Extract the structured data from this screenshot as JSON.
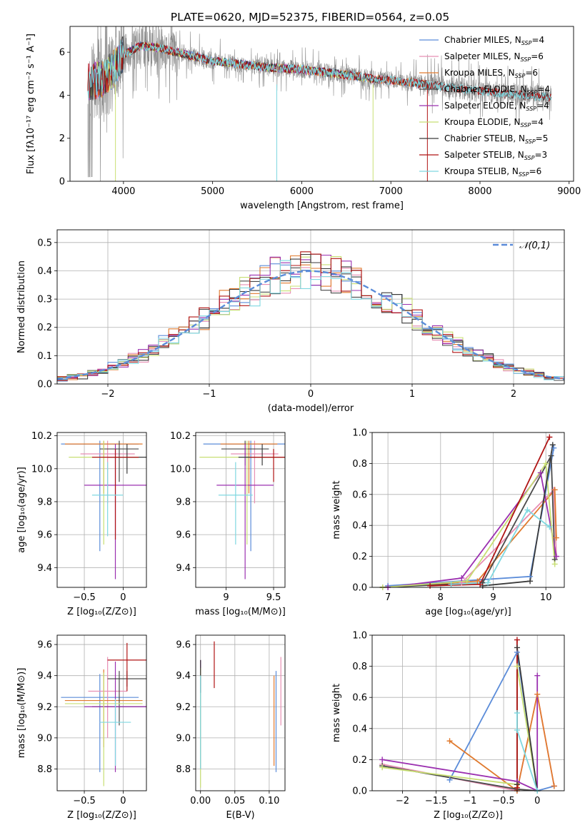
{
  "title": "PLATE=0620, MJD=52375, FIBERID=0564, z=0.05",
  "colors": {
    "Chabrier MILES": "#5b8cd9",
    "Salpeter MILES": "#e88fb4",
    "Kroupa MILES": "#e07a2e",
    "Chabrier ELODIE": "#4a4a4a",
    "Salpeter ELODIE": "#9b30b0",
    "Kroupa ELODIE": "#c8df73",
    "Chabrier STELIB": "#3a3a3a",
    "Salpeter STELIB": "#b01414",
    "Kroupa STELIB": "#7fd8e0",
    "data": "#8a8a8a",
    "normal": "#5b8cd9"
  },
  "chart_data": [
    {
      "type": "line",
      "id": "spectrum",
      "xlabel": "wavelength [Angstrom, rest frame]",
      "ylabel": "Flux [fλ10⁻¹⁷ erg cm⁻² s⁻¹ A⁻¹]",
      "xlim": [
        3400,
        9050
      ],
      "ylim": [
        0,
        7.2
      ],
      "xticks": [
        4000,
        5000,
        6000,
        7000,
        8000,
        9000
      ],
      "yticks": [
        0,
        2,
        4,
        6
      ],
      "grid": false,
      "legend_position": "right",
      "legend": [
        {
          "name": "Chabrier MILES",
          "label": "Chabrier MILES, N",
          "n": "=4"
        },
        {
          "name": "Salpeter MILES",
          "label": "Salpeter MILES, N",
          "n": "=6"
        },
        {
          "name": "Kroupa MILES",
          "label": "Kroupa MILES, N",
          "n": "=6"
        },
        {
          "name": "Chabrier ELODIE",
          "label": "Chabrier ELODIE, N",
          "n": "=4"
        },
        {
          "name": "Salpeter ELODIE",
          "label": "Salpeter ELODIE, N",
          "n": "=4"
        },
        {
          "name": "Kroupa ELODIE",
          "label": "Kroupa ELODIE, N",
          "n": "=4"
        },
        {
          "name": "Chabrier STELIB",
          "label": "Chabrier STELIB, N",
          "n": "=5"
        },
        {
          "name": "Salpeter STELIB",
          "label": "Salpeter STELIB, N",
          "n": "=3"
        },
        {
          "name": "Kroupa STELIB",
          "label": "Kroupa STELIB, N",
          "n": "=6"
        }
      ],
      "legend_subscript": "SSP",
      "continuum": [
        [
          3600,
          4.6
        ],
        [
          3800,
          4.8
        ],
        [
          3900,
          5.3
        ],
        [
          4000,
          5.9
        ],
        [
          4200,
          6.3
        ],
        [
          4400,
          6.2
        ],
        [
          4600,
          6.0
        ],
        [
          4800,
          5.8
        ],
        [
          5000,
          5.6
        ],
        [
          5200,
          5.5
        ],
        [
          5400,
          5.4
        ],
        [
          5600,
          5.3
        ],
        [
          5800,
          5.25
        ],
        [
          6000,
          5.2
        ],
        [
          6200,
          5.1
        ],
        [
          6400,
          5.0
        ],
        [
          6600,
          4.9
        ],
        [
          6800,
          4.75
        ],
        [
          7000,
          4.7
        ],
        [
          7200,
          4.6
        ],
        [
          7400,
          4.5
        ]
      ],
      "data_range": [
        3600,
        8800
      ],
      "data_continuum": [
        [
          7400,
          4.5
        ],
        [
          7800,
          4.3
        ],
        [
          8200,
          4.1
        ],
        [
          8500,
          4.0
        ],
        [
          8800,
          3.9
        ]
      ],
      "model_ends": {
        "MILES": 7400,
        "ELODIE": 6800,
        "STELIB": 8800
      }
    },
    {
      "type": "bar",
      "id": "residual-histogram",
      "xlabel": "(data-model)/error",
      "ylabel": "Normed distribution",
      "xlim": [
        -2.5,
        2.5
      ],
      "ylim": [
        0,
        0.545
      ],
      "xticks": [
        -2,
        -1,
        0,
        1,
        2
      ],
      "yticks": [
        0.0,
        0.1,
        0.2,
        0.3,
        0.4,
        0.5
      ],
      "grid": true,
      "bin_start": -2.5,
      "bin_width": 0.1,
      "reference_label": "𝒩(0,1)",
      "reference": "normal(0,1)",
      "legend_position": "top-right"
    },
    {
      "type": "scatter",
      "id": "age-vs-Z",
      "xlabel": "Z [log₁₀(Z/Z⊙)]",
      "ylabel": "age  [log₁₀(age/yr)]",
      "xlim": [
        -0.85,
        0.3
      ],
      "ylim": [
        9.28,
        10.22
      ],
      "xticks": [
        -0.5,
        0.0
      ],
      "yticks": [
        9.4,
        9.6,
        9.8,
        10.0,
        10.2
      ],
      "grid": true,
      "points": [
        {
          "name": "Chabrier MILES",
          "x": -0.3,
          "xerr": 0.5,
          "y": 10.15,
          "yerr": [
            0.65,
            0.02
          ]
        },
        {
          "name": "Salpeter MILES",
          "x": -0.2,
          "xerr": 0.35,
          "y": 10.09,
          "yerr": [
            0.3,
            0.08
          ]
        },
        {
          "name": "Kroupa MILES",
          "x": -0.25,
          "xerr": 0.5,
          "y": 10.15,
          "yerr": [
            0.3,
            0.02
          ]
        },
        {
          "name": "Chabrier ELODIE",
          "x": -0.05,
          "xerr": 0.25,
          "y": 10.12,
          "yerr": [
            0.2,
            0.05
          ]
        },
        {
          "name": "Salpeter ELODIE",
          "x": -0.1,
          "xerr": 0.4,
          "y": 9.9,
          "yerr": [
            0.57,
            0.25
          ]
        },
        {
          "name": "Kroupa ELODIE",
          "x": -0.25,
          "xerr": 0.45,
          "y": 10.07,
          "yerr": [
            0.53,
            0.1
          ]
        },
        {
          "name": "Chabrier STELIB",
          "x": 0.05,
          "xerr": 0.25,
          "y": 10.07,
          "yerr": [
            0.1,
            0.08
          ]
        },
        {
          "name": "Salpeter STELIB",
          "x": -0.1,
          "xerr": 0.3,
          "y": 10.07,
          "yerr": [
            0.5,
            0.05
          ]
        },
        {
          "name": "Kroupa STELIB",
          "x": -0.2,
          "xerr": 0.2,
          "y": 9.84,
          "yerr": [
            0.25,
            0.2
          ]
        }
      ]
    },
    {
      "type": "scatter",
      "id": "age-vs-mass",
      "xlabel": "mass [log₁₀(M/M⊙)]",
      "ylabel": "",
      "xlim": [
        8.68,
        9.62
      ],
      "ylim": [
        9.28,
        10.22
      ],
      "xticks": [
        9.0,
        9.5
      ],
      "yticks": [
        9.4,
        9.6,
        9.8,
        10.0,
        10.2
      ],
      "grid": true,
      "points": [
        {
          "name": "Chabrier MILES",
          "x": 9.26,
          "xerr": 0.5,
          "y": 10.15,
          "yerr": [
            0.65,
            0.02
          ]
        },
        {
          "name": "Salpeter MILES",
          "x": 9.3,
          "xerr": 0.25,
          "y": 10.09,
          "yerr": [
            0.3,
            0.08
          ]
        },
        {
          "name": "Kroupa MILES",
          "x": 9.24,
          "xerr": 0.3,
          "y": 10.15,
          "yerr": [
            0.3,
            0.02
          ]
        },
        {
          "name": "Chabrier ELODIE",
          "x": 9.2,
          "xerr": 0.25,
          "y": 10.12,
          "yerr": [
            0.1,
            0.05
          ]
        },
        {
          "name": "Salpeter ELODIE",
          "x": 9.2,
          "xerr": 0.3,
          "y": 9.9,
          "yerr": [
            0.57,
            0.25
          ]
        },
        {
          "name": "Kroupa ELODIE",
          "x": 9.22,
          "xerr": 0.5,
          "y": 10.07,
          "yerr": [
            0.53,
            0.1
          ]
        },
        {
          "name": "Chabrier STELIB",
          "x": 9.38,
          "xerr": 0.25,
          "y": 10.07,
          "yerr": [
            0.05,
            0.08
          ]
        },
        {
          "name": "Salpeter STELIB",
          "x": 9.5,
          "xerr": 0.25,
          "y": 10.07,
          "yerr": [
            0.15,
            0.05
          ]
        },
        {
          "name": "Kroupa STELIB",
          "x": 9.1,
          "xerr": 0.18,
          "y": 9.84,
          "yerr": [
            0.3,
            0.2
          ]
        }
      ]
    },
    {
      "type": "line",
      "id": "mass-weight-vs-age",
      "xlabel": "age  [log₁₀(age/yr)]",
      "ylabel": "mass weight",
      "xlim": [
        6.7,
        10.35
      ],
      "ylim": [
        0,
        1.0
      ],
      "xticks": [
        7,
        8,
        9,
        10
      ],
      "yticks": [
        0.0,
        0.2,
        0.4,
        0.6,
        0.8,
        1.0
      ],
      "grid": true,
      "series": [
        {
          "name": "Chabrier MILES",
          "x": [
            7.0,
            9.7,
            10.15
          ],
          "y": [
            0.01,
            0.07,
            0.9
          ]
        },
        {
          "name": "Salpeter MILES",
          "x": [
            7.0,
            8.4,
            10.15,
            10.2
          ],
          "y": [
            0.0,
            0.03,
            0.63,
            0.2
          ]
        },
        {
          "name": "Kroupa MILES",
          "x": [
            6.9,
            8.7,
            10.17,
            10.2
          ],
          "y": [
            0.0,
            0.04,
            0.63,
            0.32
          ]
        },
        {
          "name": "Chabrier ELODIE",
          "x": [
            6.9,
            8.8,
            10.1,
            10.17
          ],
          "y": [
            0.0,
            0.03,
            0.85,
            0.18
          ]
        },
        {
          "name": "Salpeter ELODIE",
          "x": [
            7.0,
            8.4,
            9.9,
            10.2
          ],
          "y": [
            0.0,
            0.06,
            0.74,
            0.2
          ]
        },
        {
          "name": "Kroupa ELODIE",
          "x": [
            6.9,
            8.5,
            10.0,
            10.17
          ],
          "y": [
            0.0,
            0.04,
            0.8,
            0.15
          ]
        },
        {
          "name": "Chabrier STELIB",
          "x": [
            8.8,
            9.7,
            10.13
          ],
          "y": [
            0.01,
            0.04,
            0.92
          ]
        },
        {
          "name": "Salpeter STELIB",
          "x": [
            7.8,
            8.75,
            10.07
          ],
          "y": [
            0.01,
            0.02,
            0.97
          ]
        },
        {
          "name": "Kroupa STELIB",
          "x": [
            8.2,
            8.9,
            9.65,
            10.07
          ],
          "y": [
            0.02,
            0.03,
            0.5,
            0.39
          ]
        }
      ]
    },
    {
      "type": "scatter",
      "id": "mass-vs-Z",
      "xlabel": "Z [log₁₀(Z/Z⊙)]",
      "ylabel": "mass [log₁₀(M/M⊙)]",
      "xlim": [
        -0.85,
        0.3
      ],
      "ylim": [
        8.66,
        9.66
      ],
      "xticks": [
        -0.5,
        0.0
      ],
      "yticks": [
        8.8,
        9.0,
        9.2,
        9.4,
        9.6
      ],
      "grid": true,
      "points": [
        {
          "name": "Chabrier MILES",
          "x": -0.3,
          "xerr": 0.5,
          "y": 9.26,
          "yerr": [
            0.48,
            0.15
          ]
        },
        {
          "name": "Salpeter MILES",
          "x": -0.2,
          "xerr": 0.25,
          "y": 9.3,
          "yerr": [
            0.3,
            0.22
          ]
        },
        {
          "name": "Kroupa MILES",
          "x": -0.25,
          "xerr": 0.5,
          "y": 9.24,
          "yerr": [
            0.3,
            0.2
          ]
        },
        {
          "name": "Chabrier ELODIE",
          "x": -0.05,
          "xerr": 0.35,
          "y": 9.2,
          "yerr": [
            0.12,
            0.23
          ]
        },
        {
          "name": "Salpeter ELODIE",
          "x": -0.1,
          "xerr": 0.4,
          "y": 9.2,
          "yerr": [
            0.42,
            0.29
          ]
        },
        {
          "name": "Kroupa ELODIE",
          "x": -0.25,
          "xerr": 0.5,
          "y": 9.22,
          "yerr": [
            0.53,
            0.2
          ]
        },
        {
          "name": "Chabrier STELIB",
          "x": 0.05,
          "xerr": 0.25,
          "y": 9.38,
          "yerr": [
            0.05,
            0.05
          ]
        },
        {
          "name": "Salpeter STELIB",
          "x": 0.05,
          "xerr": 0.25,
          "y": 9.5,
          "yerr": [
            0.2,
            0.11
          ]
        },
        {
          "name": "Kroupa STELIB",
          "x": -0.1,
          "xerr": 0.2,
          "y": 9.1,
          "yerr": [
            0.28,
            0.15
          ]
        }
      ]
    },
    {
      "type": "scatter",
      "id": "mass-vs-EBV",
      "xlabel": "E(B-V)",
      "ylabel": "",
      "xlim": [
        -0.007,
        0.123
      ],
      "ylim": [
        8.66,
        9.66
      ],
      "xticks": [
        0.0,
        0.05,
        0.1
      ],
      "xtick_labels": [
        "0.00",
        "0.05",
        "0.10"
      ],
      "yticks": [
        8.8,
        9.0,
        9.2,
        9.4,
        9.6
      ],
      "grid": true,
      "points": [
        {
          "name": "Chabrier MILES",
          "x": 0.11,
          "y": 9.1,
          "yerr": [
            0.32,
            0.33
          ]
        },
        {
          "name": "Salpeter MILES",
          "x": 0.117,
          "y": 9.3,
          "yerr": [
            0.22,
            0.22
          ]
        },
        {
          "name": "Kroupa MILES",
          "x": 0.107,
          "y": 9.1,
          "yerr": [
            0.28,
            0.3
          ]
        },
        {
          "name": "Chabrier ELODIE",
          "x": 0.0,
          "y": 9.2,
          "yerr": [
            0.4,
            0.3
          ]
        },
        {
          "name": "Salpeter ELODIE",
          "x": 0.0,
          "y": 9.2,
          "yerr": [
            0.4,
            0.3
          ]
        },
        {
          "name": "Kroupa ELODIE",
          "x": 0.0,
          "y": 9.2,
          "yerr": [
            0.52,
            0.25
          ]
        },
        {
          "name": "Chabrier STELIB",
          "x": 0.0,
          "y": 9.37,
          "yerr": [
            0.08,
            0.13
          ]
        },
        {
          "name": "Salpeter STELIB",
          "x": 0.02,
          "y": 9.47,
          "yerr": [
            0.15,
            0.15
          ]
        },
        {
          "name": "Kroupa STELIB",
          "x": 0.0,
          "y": 9.1,
          "yerr": [
            0.3,
            0.3
          ]
        }
      ]
    },
    {
      "type": "line",
      "id": "mass-weight-vs-Z",
      "xlabel": "Z [log₁₀(Z/Z⊙)]",
      "ylabel": "mass weight",
      "xlim": [
        -2.45,
        0.4
      ],
      "ylim": [
        0,
        1.0
      ],
      "xticks": [
        -2.0,
        -1.5,
        -1.0,
        -0.5,
        0.0
      ],
      "yticks": [
        0.0,
        0.2,
        0.4,
        0.6,
        0.8,
        1.0
      ],
      "grid": true,
      "series": [
        {
          "name": "Chabrier MILES",
          "x": [
            -1.3,
            -0.3,
            0.0,
            0.25
          ],
          "y": [
            0.07,
            0.89,
            0.0,
            0.03
          ]
        },
        {
          "name": "Salpeter MILES",
          "x": [
            -2.3,
            -0.3,
            0.0,
            0.25
          ],
          "y": [
            0.17,
            0.0,
            0.62,
            0.03
          ]
        },
        {
          "name": "Kroupa MILES",
          "x": [
            -1.3,
            -0.3,
            0.0,
            0.25
          ],
          "y": [
            0.32,
            0.0,
            0.62,
            0.03
          ]
        },
        {
          "name": "Chabrier ELODIE",
          "x": [
            -2.3,
            -0.3,
            0.0
          ],
          "y": [
            0.16,
            0.01,
            0.0
          ]
        },
        {
          "name": "Salpeter ELODIE",
          "x": [
            -2.3,
            -0.3,
            0.0,
            0.0
          ],
          "y": [
            0.2,
            0.06,
            0.0,
            0.74
          ]
        },
        {
          "name": "Kroupa ELODIE",
          "x": [
            -2.3,
            -0.3,
            -0.3,
            0.0
          ],
          "y": [
            0.15,
            0.04,
            0.8,
            0.0
          ]
        },
        {
          "name": "Chabrier STELIB",
          "x": [
            -0.3,
            -0.3,
            0.0
          ],
          "y": [
            0.04,
            0.92,
            0.0
          ]
        },
        {
          "name": "Salpeter STELIB",
          "x": [
            -0.3,
            -0.3
          ],
          "y": [
            0.02,
            0.97
          ]
        },
        {
          "name": "Kroupa STELIB",
          "x": [
            -0.3,
            -0.3,
            0.0
          ],
          "y": [
            0.5,
            0.39,
            0.0
          ]
        }
      ]
    }
  ]
}
